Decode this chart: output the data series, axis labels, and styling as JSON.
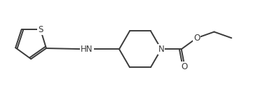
{
  "bg_color": "#ffffff",
  "bond_color": "#3a3a3a",
  "text_color": "#3a3a3a",
  "bond_lw": 1.4,
  "font_size": 8.5,
  "fig_width": 3.68,
  "fig_height": 1.43,
  "dpi": 100,
  "xlim": [
    0,
    9.2
  ],
  "ylim": [
    0,
    3.58
  ]
}
